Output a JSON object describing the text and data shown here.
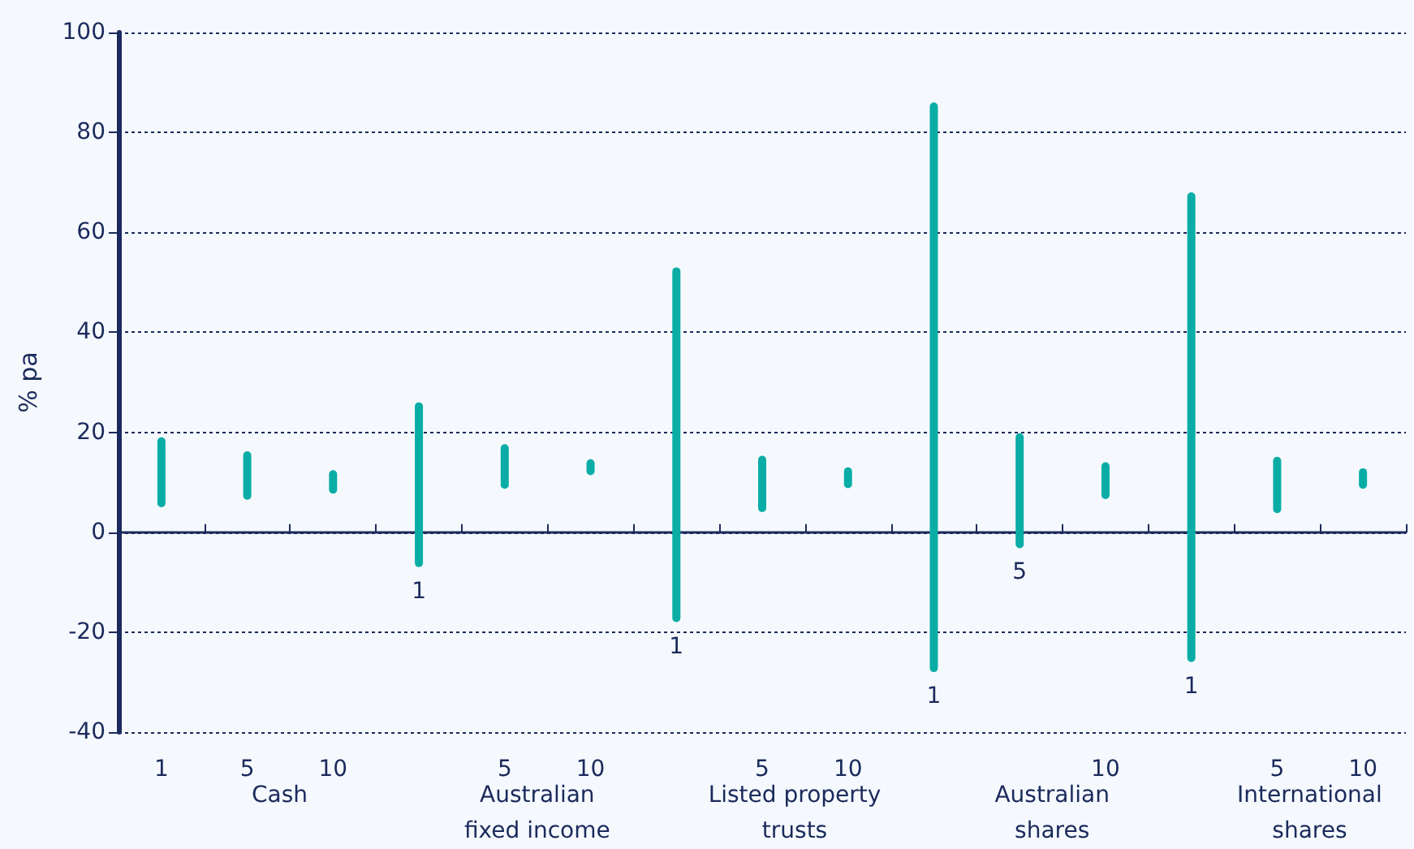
{
  "chart_data": {
    "type": "bar",
    "ylabel": "% pa",
    "categories": [
      "1",
      "5",
      "10",
      "1",
      "5",
      "10",
      "1",
      "5",
      "10",
      "1",
      "5",
      "10",
      "1",
      "5",
      "10"
    ],
    "base": [
      5,
      6.5,
      7.7,
      -7,
      8.7,
      11.4,
      -18,
      4,
      8.8,
      -28,
      -3.2,
      6.6,
      -26,
      3.8,
      8.7
    ],
    "values": [
      14,
      9.7,
      4.7,
      33,
      8.9,
      3.2,
      71,
      11.3,
      4.2,
      114,
      23,
      7.4,
      94,
      11.3,
      4.1
    ],
    "color": "#0aada6",
    "ylim": [
      -40,
      100
    ],
    "yticks": [
      -40,
      -20,
      0,
      20,
      40,
      60,
      80,
      100
    ],
    "grid": "y",
    "annotations": [
      "Cash",
      "Australian\nfixed income",
      "Listed property\ntrusts",
      "Australian\nshares",
      "International\nshares"
    ]
  }
}
